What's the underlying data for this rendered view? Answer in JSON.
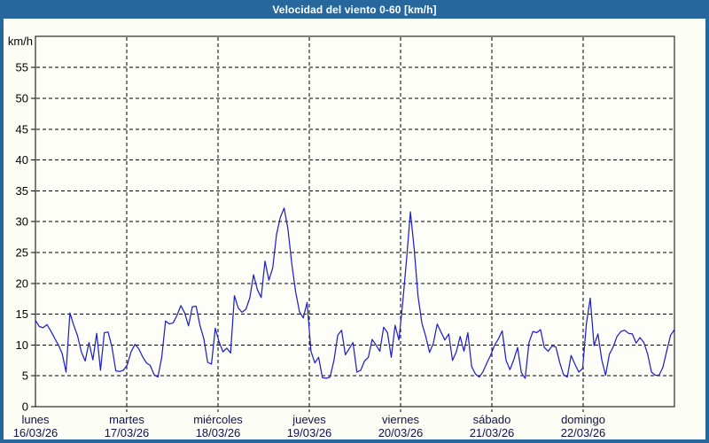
{
  "window": {
    "title": "Velocidad del viento 0-60 [km/h]"
  },
  "colors": {
    "titlebar_bg": "#26689E",
    "frame_border": "#26689E",
    "window_bg": "#fcfdf5",
    "plot_bg": "#fdfef8",
    "grid": "#000000",
    "axis_text": "#000000",
    "day_text": "#11114d",
    "series_line": "#2121c8"
  },
  "chart_data": {
    "type": "line",
    "title": "Velocidad del viento 0-60 [km/h]",
    "y_unit_label": "km/h",
    "ylabel": "km/h",
    "xlabel": "",
    "ylim": [
      0,
      60
    ],
    "ytick_interval": 5,
    "yticks": [
      0,
      5,
      10,
      15,
      20,
      25,
      30,
      35,
      40,
      45,
      50,
      55
    ],
    "grid": "dashed",
    "legend": "none",
    "points_per_day": 24,
    "categories": [
      {
        "day": "lunes",
        "date": "16/03/26"
      },
      {
        "day": "martes",
        "date": "17/03/26"
      },
      {
        "day": "miércoles",
        "date": "18/03/26"
      },
      {
        "day": "jueves",
        "date": "19/03/26"
      },
      {
        "day": "viernes",
        "date": "20/03/26"
      },
      {
        "day": "sábado",
        "date": "21/03/26"
      },
      {
        "day": "domingo",
        "date": "22/03/26"
      }
    ],
    "series": [
      {
        "name": "Velocidad del viento",
        "unit": "km/h",
        "values": [
          14.0,
          13.0,
          12.8,
          13.3,
          12.3,
          11.1,
          10.0,
          8.6,
          5.6,
          15.2,
          13.2,
          11.5,
          8.9,
          7.4,
          10.4,
          7.6,
          11.9,
          5.9,
          12.0,
          12.1,
          9.7,
          5.8,
          5.7,
          5.9,
          6.8,
          8.9,
          10.1,
          9.4,
          8.1,
          7.1,
          6.7,
          5.2,
          4.8,
          8.0,
          13.9,
          13.4,
          13.6,
          14.8,
          16.4,
          15.2,
          13.1,
          16.2,
          16.3,
          13.2,
          11.0,
          7.2,
          6.9,
          12.7,
          10.5,
          8.9,
          9.5,
          8.7,
          18.0,
          16.0,
          15.3,
          15.8,
          17.6,
          21.4,
          19.0,
          17.7,
          23.6,
          20.5,
          22.5,
          27.9,
          30.7,
          32.2,
          28.8,
          23.1,
          18.6,
          15.4,
          14.4,
          16.9,
          9.0,
          7.1,
          8.0,
          4.7,
          4.6,
          4.8,
          7.5,
          11.6,
          12.4,
          8.4,
          9.4,
          10.4,
          5.6,
          5.9,
          7.4,
          8.0,
          10.9,
          10.0,
          9.0,
          12.9,
          12.0,
          8.0,
          13.2,
          10.8,
          17.0,
          24.0,
          31.6,
          25.5,
          17.9,
          13.5,
          11.4,
          8.8,
          10.3,
          13.4,
          12.1,
          10.8,
          11.8,
          7.5,
          8.9,
          11.4,
          9.0,
          12.0,
          6.5,
          5.3,
          4.8,
          5.7,
          7.1,
          8.4,
          10.0,
          11.0,
          12.3,
          7.5,
          6.0,
          7.6,
          9.6,
          5.5,
          4.6,
          10.4,
          12.2,
          12.0,
          12.5,
          9.6,
          9.0,
          9.8,
          9.7,
          7.2,
          5.2,
          4.8,
          8.3,
          6.9,
          5.6,
          6.2,
          13.5,
          17.6,
          9.9,
          11.8,
          7.6,
          5.1,
          8.5,
          9.7,
          11.4,
          12.2,
          12.4,
          11.9,
          11.8,
          10.3,
          11.2,
          10.4,
          8.5,
          5.6,
          5.1,
          5.1,
          6.4,
          9.1,
          11.6,
          12.5
        ]
      }
    ]
  }
}
